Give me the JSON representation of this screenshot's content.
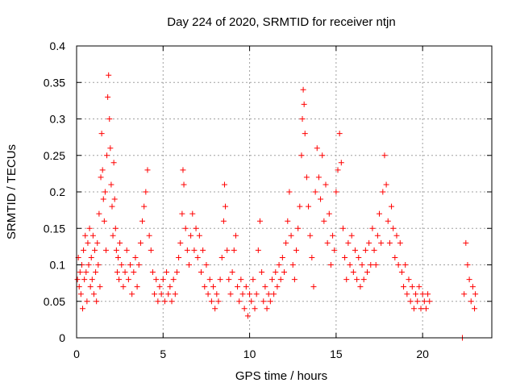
{
  "chart_data": {
    "type": "scatter",
    "title": "Day 224 of 2020, SRMTID for receiver ntjn",
    "xlabel": "GPS time / hours",
    "ylabel": "SRMTID / TECUs",
    "xlim": [
      0,
      24
    ],
    "ylim": [
      0,
      0.4
    ],
    "xticks": [
      "0",
      "5",
      "10",
      "15",
      "20"
    ],
    "yticks": [
      "0",
      "0.05",
      "0.1",
      "0.15",
      "0.2",
      "0.25",
      "0.3",
      "0.35",
      "0.4"
    ],
    "grid": true,
    "marker": "+",
    "color": "#ff0000",
    "points": [
      [
        0.05,
        0.08
      ],
      [
        0.1,
        0.11
      ],
      [
        0.15,
        0.07
      ],
      [
        0.2,
        0.09
      ],
      [
        0.25,
        0.06
      ],
      [
        0.3,
        0.1
      ],
      [
        0.35,
        0.04
      ],
      [
        0.4,
        0.12
      ],
      [
        0.45,
        0.08
      ],
      [
        0.5,
        0.14
      ],
      [
        0.55,
        0.09
      ],
      [
        0.6,
        0.05
      ],
      [
        0.65,
        0.13
      ],
      [
        0.7,
        0.1
      ],
      [
        0.75,
        0.15
      ],
      [
        0.8,
        0.07
      ],
      [
        0.85,
        0.11
      ],
      [
        0.9,
        0.08
      ],
      [
        0.95,
        0.14
      ],
      [
        1.0,
        0.06
      ],
      [
        1.05,
        0.12
      ],
      [
        1.1,
        0.09
      ],
      [
        1.15,
        0.05
      ],
      [
        1.2,
        0.13
      ],
      [
        1.25,
        0.1
      ],
      [
        1.3,
        0.17
      ],
      [
        1.35,
        0.07
      ],
      [
        1.4,
        0.22
      ],
      [
        1.45,
        0.28
      ],
      [
        1.5,
        0.23
      ],
      [
        1.55,
        0.19
      ],
      [
        1.6,
        0.16
      ],
      [
        1.65,
        0.2
      ],
      [
        1.7,
        0.12
      ],
      [
        1.75,
        0.25
      ],
      [
        1.8,
        0.33
      ],
      [
        1.85,
        0.36
      ],
      [
        1.9,
        0.3
      ],
      [
        1.95,
        0.26
      ],
      [
        2.0,
        0.21
      ],
      [
        2.05,
        0.18
      ],
      [
        2.1,
        0.14
      ],
      [
        2.15,
        0.24
      ],
      [
        2.2,
        0.19
      ],
      [
        2.25,
        0.15
      ],
      [
        2.3,
        0.12
      ],
      [
        2.35,
        0.09
      ],
      [
        2.4,
        0.11
      ],
      [
        2.45,
        0.08
      ],
      [
        2.5,
        0.13
      ],
      [
        2.6,
        0.1
      ],
      [
        2.7,
        0.07
      ],
      [
        2.8,
        0.09
      ],
      [
        2.9,
        0.12
      ],
      [
        3.0,
        0.08
      ],
      [
        3.1,
        0.1
      ],
      [
        3.2,
        0.06
      ],
      [
        3.3,
        0.09
      ],
      [
        3.4,
        0.11
      ],
      [
        3.5,
        0.07
      ],
      [
        3.6,
        0.1
      ],
      [
        3.7,
        0.13
      ],
      [
        3.8,
        0.16
      ],
      [
        3.9,
        0.18
      ],
      [
        4.0,
        0.2
      ],
      [
        4.1,
        0.23
      ],
      [
        4.2,
        0.14
      ],
      [
        4.3,
        0.12
      ],
      [
        4.4,
        0.09
      ],
      [
        4.5,
        0.06
      ],
      [
        4.6,
        0.08
      ],
      [
        4.7,
        0.05
      ],
      [
        4.8,
        0.07
      ],
      [
        4.9,
        0.06
      ],
      [
        5.0,
        0.08
      ],
      [
        5.1,
        0.05
      ],
      [
        5.2,
        0.09
      ],
      [
        5.3,
        0.06
      ],
      [
        5.4,
        0.07
      ],
      [
        5.5,
        0.05
      ],
      [
        5.6,
        0.08
      ],
      [
        5.7,
        0.06
      ],
      [
        5.8,
        0.09
      ],
      [
        5.9,
        0.11
      ],
      [
        6.0,
        0.13
      ],
      [
        6.1,
        0.17
      ],
      [
        6.15,
        0.23
      ],
      [
        6.2,
        0.21
      ],
      [
        6.3,
        0.15
      ],
      [
        6.4,
        0.12
      ],
      [
        6.5,
        0.1
      ],
      [
        6.6,
        0.14
      ],
      [
        6.7,
        0.17
      ],
      [
        6.8,
        0.12
      ],
      [
        6.9,
        0.15
      ],
      [
        7.0,
        0.11
      ],
      [
        7.1,
        0.14
      ],
      [
        7.2,
        0.09
      ],
      [
        7.3,
        0.12
      ],
      [
        7.4,
        0.07
      ],
      [
        7.5,
        0.1
      ],
      [
        7.6,
        0.06
      ],
      [
        7.7,
        0.08
      ],
      [
        7.8,
        0.05
      ],
      [
        7.9,
        0.07
      ],
      [
        8.0,
        0.04
      ],
      [
        8.1,
        0.06
      ],
      [
        8.2,
        0.05
      ],
      [
        8.3,
        0.08
      ],
      [
        8.4,
        0.11
      ],
      [
        8.5,
        0.16
      ],
      [
        8.55,
        0.21
      ],
      [
        8.6,
        0.18
      ],
      [
        8.7,
        0.12
      ],
      [
        8.8,
        0.08
      ],
      [
        8.9,
        0.06
      ],
      [
        9.0,
        0.09
      ],
      [
        9.1,
        0.12
      ],
      [
        9.2,
        0.14
      ],
      [
        9.3,
        0.07
      ],
      [
        9.4,
        0.05
      ],
      [
        9.5,
        0.08
      ],
      [
        9.6,
        0.06
      ],
      [
        9.7,
        0.04
      ],
      [
        9.8,
        0.07
      ],
      [
        9.9,
        0.03
      ],
      [
        10.0,
        0.06
      ],
      [
        10.1,
        0.05
      ],
      [
        10.2,
        0.08
      ],
      [
        10.3,
        0.04
      ],
      [
        10.4,
        0.06
      ],
      [
        10.5,
        0.12
      ],
      [
        10.6,
        0.16
      ],
      [
        10.7,
        0.09
      ],
      [
        10.8,
        0.05
      ],
      [
        10.9,
        0.07
      ],
      [
        11.0,
        0.04
      ],
      [
        11.1,
        0.06
      ],
      [
        11.2,
        0.05
      ],
      [
        11.3,
        0.08
      ],
      [
        11.4,
        0.06
      ],
      [
        11.5,
        0.09
      ],
      [
        11.6,
        0.07
      ],
      [
        11.7,
        0.1
      ],
      [
        11.8,
        0.08
      ],
      [
        11.9,
        0.11
      ],
      [
        12.0,
        0.09
      ],
      [
        12.1,
        0.13
      ],
      [
        12.2,
        0.16
      ],
      [
        12.3,
        0.2
      ],
      [
        12.4,
        0.14
      ],
      [
        12.5,
        0.1
      ],
      [
        12.6,
        0.08
      ],
      [
        12.7,
        0.12
      ],
      [
        12.8,
        0.15
      ],
      [
        12.9,
        0.18
      ],
      [
        13.0,
        0.25
      ],
      [
        13.05,
        0.3
      ],
      [
        13.1,
        0.34
      ],
      [
        13.15,
        0.32
      ],
      [
        13.2,
        0.28
      ],
      [
        13.3,
        0.22
      ],
      [
        13.4,
        0.18
      ],
      [
        13.5,
        0.14
      ],
      [
        13.6,
        0.11
      ],
      [
        13.7,
        0.07
      ],
      [
        13.8,
        0.2
      ],
      [
        13.9,
        0.26
      ],
      [
        14.0,
        0.22
      ],
      [
        14.1,
        0.19
      ],
      [
        14.2,
        0.25
      ],
      [
        14.3,
        0.16
      ],
      [
        14.4,
        0.21
      ],
      [
        14.5,
        0.13
      ],
      [
        14.6,
        0.17
      ],
      [
        14.7,
        0.1
      ],
      [
        14.8,
        0.14
      ],
      [
        14.9,
        0.12
      ],
      [
        15.0,
        0.2
      ],
      [
        15.1,
        0.23
      ],
      [
        15.2,
        0.28
      ],
      [
        15.3,
        0.24
      ],
      [
        15.4,
        0.15
      ],
      [
        15.5,
        0.11
      ],
      [
        15.6,
        0.08
      ],
      [
        15.7,
        0.13
      ],
      [
        15.8,
        0.1
      ],
      [
        15.9,
        0.14
      ],
      [
        16.0,
        0.09
      ],
      [
        16.1,
        0.12
      ],
      [
        16.2,
        0.08
      ],
      [
        16.3,
        0.11
      ],
      [
        16.4,
        0.07
      ],
      [
        16.5,
        0.1
      ],
      [
        16.6,
        0.08
      ],
      [
        16.7,
        0.12
      ],
      [
        16.8,
        0.09
      ],
      [
        16.9,
        0.13
      ],
      [
        17.0,
        0.1
      ],
      [
        17.1,
        0.15
      ],
      [
        17.2,
        0.12
      ],
      [
        17.3,
        0.1
      ],
      [
        17.4,
        0.14
      ],
      [
        17.5,
        0.17
      ],
      [
        17.6,
        0.13
      ],
      [
        17.7,
        0.2
      ],
      [
        17.8,
        0.25
      ],
      [
        17.9,
        0.21
      ],
      [
        18.0,
        0.16
      ],
      [
        18.1,
        0.13
      ],
      [
        18.2,
        0.18
      ],
      [
        18.3,
        0.15
      ],
      [
        18.4,
        0.11
      ],
      [
        18.5,
        0.14
      ],
      [
        18.6,
        0.1
      ],
      [
        18.7,
        0.13
      ],
      [
        18.8,
        0.09
      ],
      [
        18.9,
        0.07
      ],
      [
        19.0,
        0.1
      ],
      [
        19.1,
        0.06
      ],
      [
        19.2,
        0.08
      ],
      [
        19.3,
        0.05
      ],
      [
        19.4,
        0.07
      ],
      [
        19.5,
        0.04
      ],
      [
        19.6,
        0.06
      ],
      [
        19.7,
        0.05
      ],
      [
        19.8,
        0.07
      ],
      [
        19.9,
        0.04
      ],
      [
        20.0,
        0.06
      ],
      [
        20.1,
        0.05
      ],
      [
        20.2,
        0.04
      ],
      [
        20.3,
        0.06
      ],
      [
        20.4,
        0.05
      ],
      [
        22.3,
        0.0
      ],
      [
        22.4,
        0.06
      ],
      [
        22.5,
        0.13
      ],
      [
        22.6,
        0.1
      ],
      [
        22.7,
        0.08
      ],
      [
        22.8,
        0.05
      ],
      [
        22.9,
        0.07
      ],
      [
        23.0,
        0.04
      ],
      [
        23.05,
        0.06
      ]
    ]
  }
}
